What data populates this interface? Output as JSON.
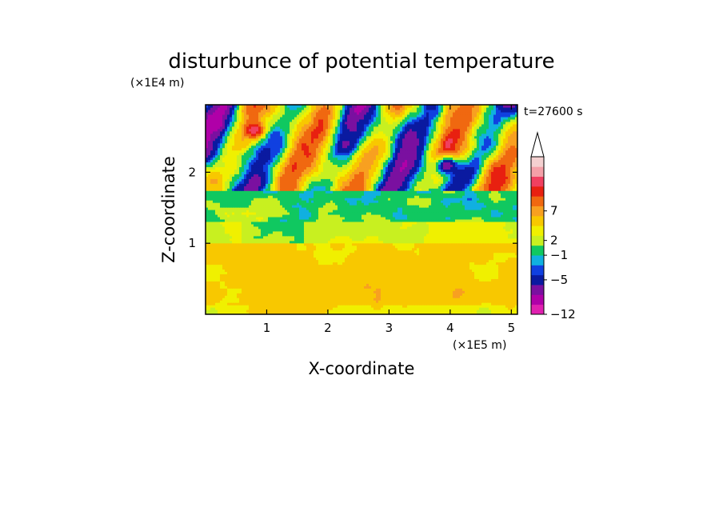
{
  "chart_data": {
    "type": "heatmap",
    "title": "disturbunce of potential temperature",
    "time_label": "t=27600 s",
    "xlabel": "X-coordinate",
    "ylabel": "Z-coordinate",
    "x_unit": "(×1E5 m)",
    "y_unit": "(×1E4 m)",
    "xlim": [
      0,
      5.1
    ],
    "ylim": [
      0,
      2.95
    ],
    "x_ticks": [
      {
        "value": 1,
        "label": "1"
      },
      {
        "value": 2,
        "label": "2"
      },
      {
        "value": 3,
        "label": "3"
      },
      {
        "value": 4,
        "label": "4"
      },
      {
        "value": 5,
        "label": "5"
      }
    ],
    "y_ticks": [
      {
        "value": 1,
        "label": "1"
      },
      {
        "value": 2,
        "label": "2"
      }
    ],
    "colorbar": {
      "levels": [
        "#e020b0",
        "#b000a8",
        "#7a10a0",
        "#0a1aa0",
        "#1040e0",
        "#10b0e0",
        "#10c860",
        "#c8f020",
        "#f0f000",
        "#f8c800",
        "#f8a020",
        "#f06810",
        "#e82010",
        "#f04060",
        "#f4a0a8",
        "#f4d0d0"
      ],
      "labels": [
        {
          "value": -12,
          "label": "−12"
        },
        {
          "value": -5,
          "label": "−5"
        },
        {
          "value": -1,
          "label": "−1"
        },
        {
          "value": 2,
          "label": "2"
        },
        {
          "value": 7,
          "label": "7"
        }
      ],
      "extend": "max"
    },
    "field": {
      "x_range": [
        0,
        5.1
      ],
      "z_range": [
        0,
        2.95
      ],
      "structure": [
        {
          "z": [
            0.0,
            1.0
          ],
          "description_value": 2.2
        },
        {
          "z": [
            1.0,
            1.3
          ],
          "description_value": 0.2
        },
        {
          "z": [
            1.3,
            1.7
          ],
          "description_value": -1.5
        },
        {
          "z": [
            1.7,
            2.95
          ],
          "description_value": 0.0
        }
      ],
      "features": [
        {
          "x": 0.8,
          "z": 2.6,
          "value": 9.5
        },
        {
          "x": 0.15,
          "z": 2.7,
          "value": -10
        },
        {
          "x": 3.95,
          "z": 2.1,
          "value": -8
        },
        {
          "x": 3.3,
          "z": 2.4,
          "value": -6
        }
      ]
    }
  }
}
